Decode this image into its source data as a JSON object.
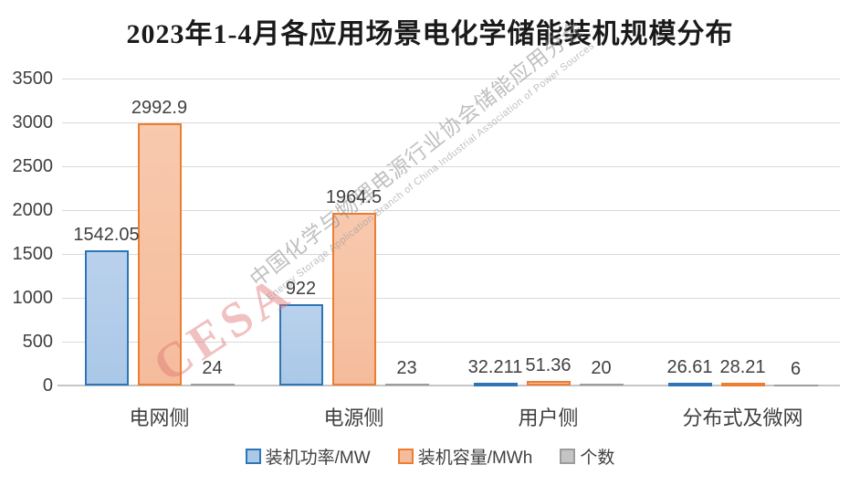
{
  "title": "2023年1-4月各应用场景电化学储能装机规模分布",
  "watermark": {
    "logo": "CESA",
    "cn": "中国化学与物理电源行业协会储能应用分会",
    "en": "Energy Storage Application Branch of China Industrial Association of Power Sources"
  },
  "colors": {
    "text": "#404040",
    "grid": "#d9d9d9",
    "axis": "#c6c4c4",
    "title": "#1a1a1a",
    "power_fill": "#abc8e8",
    "power_border": "#2e75b6",
    "capacity_fill": "#f5bc9c",
    "capacity_border": "#ed7d31",
    "count_fill": "#c4c4c4",
    "count_border": "#9c9c9c"
  },
  "chart_data": {
    "type": "bar",
    "title": "2023年1-4月各应用场景电化学储能装机规模分布",
    "categories": [
      "电网侧",
      "电源侧",
      "用户侧",
      "分布式及微网"
    ],
    "series": [
      {
        "name": "装机功率/MW",
        "fill": "#abc8e8",
        "fill_light": "#b9d1ec",
        "border": "#2e75b6",
        "values": [
          1542.05,
          922,
          32.211,
          26.61
        ],
        "labels": [
          "1542.05",
          "922",
          "32.211",
          "26.61"
        ]
      },
      {
        "name": "装机容量/MWh",
        "fill": "#f5bc9c",
        "fill_light": "#f8c9ae",
        "border": "#ed7d31",
        "values": [
          2992.9,
          1964.5,
          51.36,
          28.21
        ],
        "labels": [
          "2992.9",
          "1964.5",
          "51.36",
          "28.21"
        ]
      },
      {
        "name": "个数",
        "fill": "#c4c4c4",
        "fill_light": "#cfcfcf",
        "border": "#9c9c9c",
        "values": [
          24,
          23,
          20,
          6
        ],
        "labels": [
          "24",
          "23",
          "20",
          "6"
        ]
      }
    ],
    "ylim": [
      0,
      3500
    ],
    "ytick_step": 500,
    "yticks": [
      0,
      500,
      1000,
      1500,
      2000,
      2500,
      3000,
      3500
    ],
    "xlabel": "",
    "ylabel": "",
    "grid": true,
    "legend_position": "bottom"
  }
}
